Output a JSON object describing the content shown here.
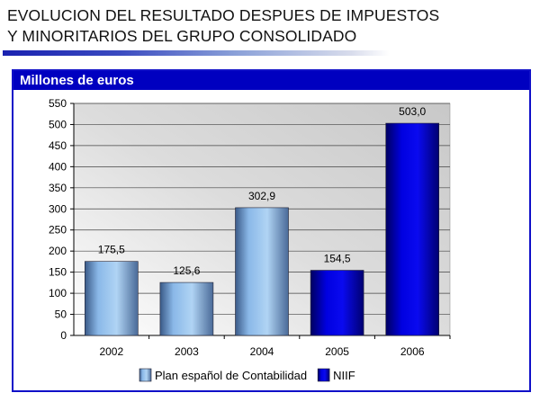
{
  "header": {
    "line1": "EVOLUCION DEL RESULTADO DESPUES DE IMPUESTOS",
    "line2": "Y MINORITARIOS DEL GRUPO CONSOLIDADO"
  },
  "panel": {
    "title": "Millones de euros"
  },
  "chart_data": {
    "type": "bar",
    "title": "Millones de euros",
    "categories": [
      "2002",
      "2003",
      "2004",
      "2005",
      "2006"
    ],
    "values": [
      175.5,
      125.6,
      302.9,
      154.5,
      503.0
    ],
    "labels": [
      "175,5",
      "125,6",
      "302,9",
      "154,5",
      "503,0"
    ],
    "series_of_bar": [
      "Plan español de Contabilidad",
      "Plan español de Contabilidad",
      "Plan español de Contabilidad",
      "NIIF",
      "NIIF"
    ],
    "series": [
      {
        "name": "Plan español de Contabilidad",
        "color": "#7fb0e0"
      },
      {
        "name": "NIIF",
        "color": "#0000d0"
      }
    ],
    "ylim": [
      0,
      550
    ],
    "ytick_step": 50,
    "grid": true,
    "legend": "bottom",
    "xlabel": "",
    "ylabel": ""
  }
}
